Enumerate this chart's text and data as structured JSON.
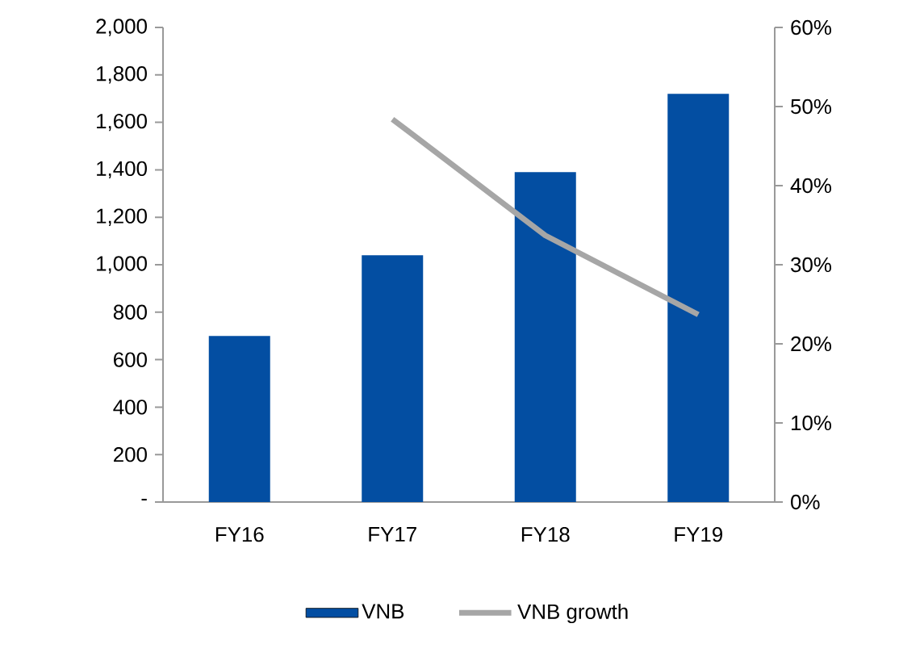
{
  "chart_data": {
    "type": "bar",
    "categories": [
      "FY16",
      "FY17",
      "FY18",
      "FY19"
    ],
    "series": [
      {
        "name": "VNB",
        "color": "#034ea2",
        "values": [
          700,
          1040,
          1390,
          1720
        ]
      },
      {
        "name": "VNB growth",
        "type": "line",
        "axis": "y2",
        "color": "#a6a6a6",
        "values": [
          null,
          48.4,
          33.7,
          23.7
        ]
      }
    ],
    "ylim": [
      0,
      2000
    ],
    "yticks": [
      {
        "value": 0,
        "label": "-"
      },
      200,
      400,
      600,
      800,
      {
        "value": 1000,
        "label": "1,000"
      },
      {
        "value": 1200,
        "label": "1,200"
      },
      {
        "value": 1400,
        "label": "1,400"
      },
      {
        "value": 1600,
        "label": "1,600"
      },
      {
        "value": 1800,
        "label": "1,800"
      },
      {
        "value": 2000,
        "label": "2,000"
      }
    ],
    "y2lim": [
      0,
      60
    ],
    "y2ticks": [
      {
        "value": 0,
        "label": "0%"
      },
      {
        "value": 10,
        "label": "10%"
      },
      {
        "value": 20,
        "label": "20%"
      },
      {
        "value": 30,
        "label": "30%"
      },
      {
        "value": 40,
        "label": "40%"
      },
      {
        "value": 50,
        "label": "50%"
      },
      {
        "value": 60,
        "label": "60%"
      }
    ],
    "legend": "bottom",
    "grid": false
  }
}
